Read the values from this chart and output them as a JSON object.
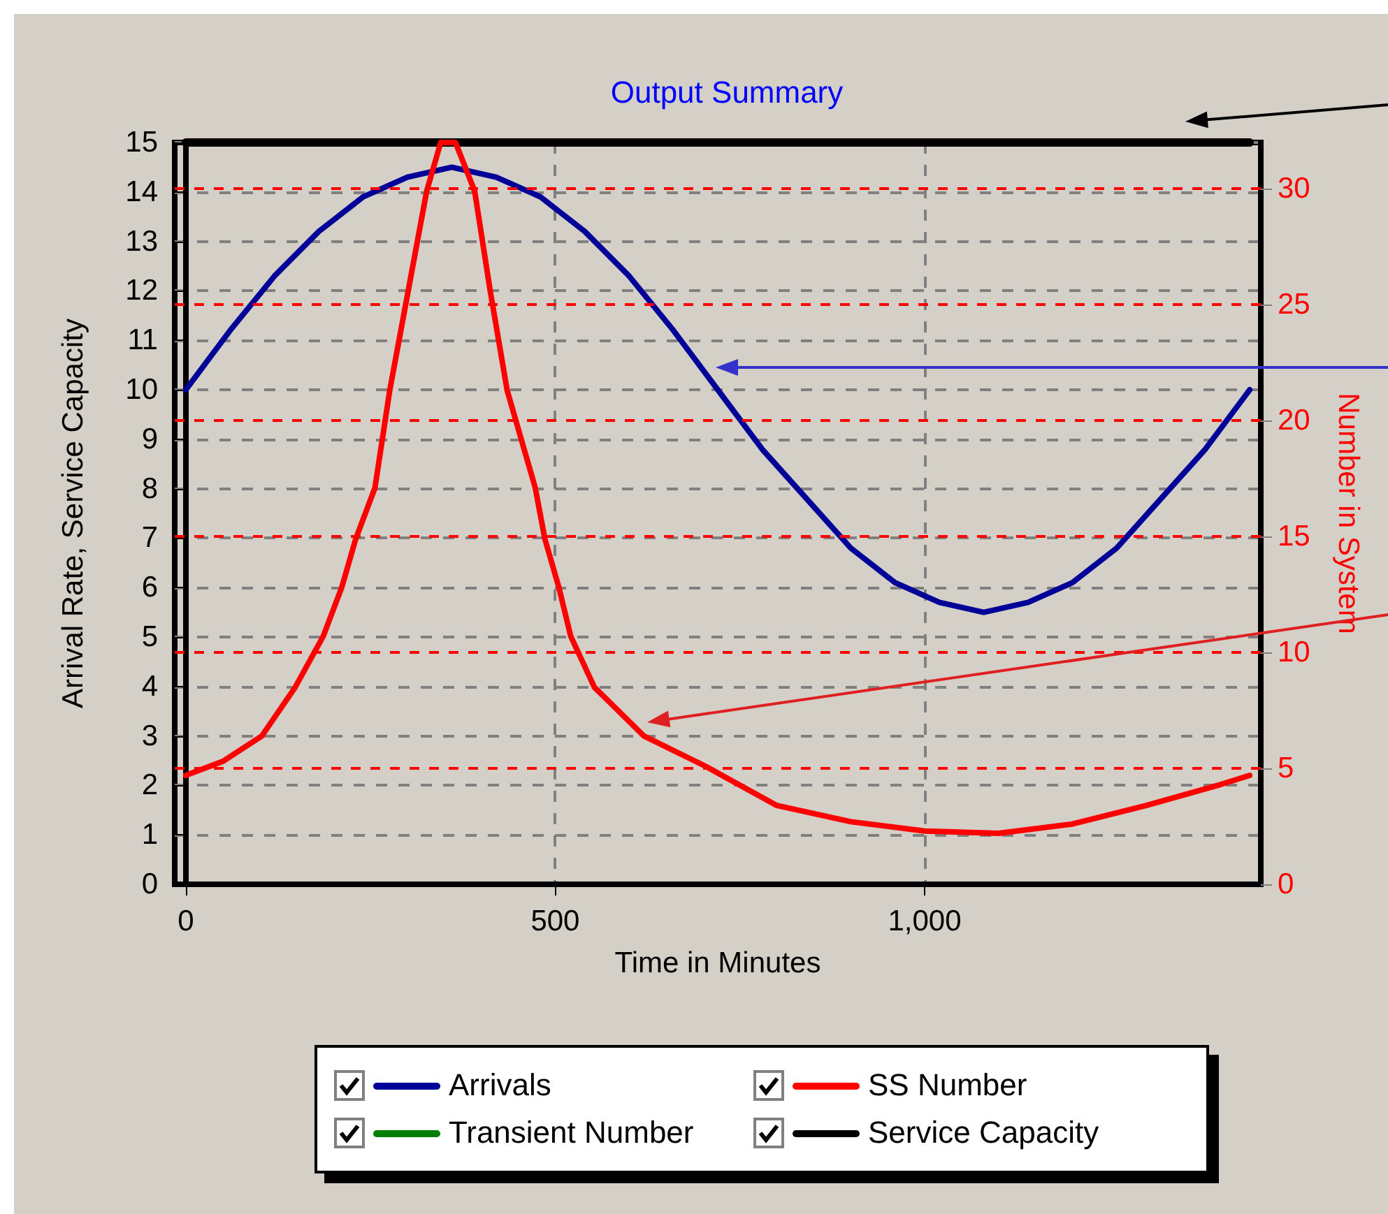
{
  "chart_data": {
    "type": "line",
    "title": "Output Summary",
    "xlabel": "Time in Minutes",
    "ylabel": "Arrival Rate, Service Capacity",
    "y2label": "Number in System",
    "xlim": [
      -15,
      1455
    ],
    "xticks": [
      0,
      500,
      {
        "value": 1000,
        "label": "1,000"
      }
    ],
    "ylim": [
      0,
      15
    ],
    "yticks": [
      0,
      1,
      2,
      3,
      4,
      5,
      6,
      7,
      8,
      9,
      10,
      11,
      12,
      13,
      14,
      15
    ],
    "y2lim": [
      0,
      32
    ],
    "y2ticks": [
      0,
      5,
      10,
      15,
      20,
      25,
      30
    ],
    "grid": true,
    "ref_lines": [
      {
        "axis": "y2",
        "value": 5,
        "color": "#ff0000",
        "line_style": "dashed"
      },
      {
        "axis": "y2",
        "value": 10,
        "color": "#ff0000",
        "line_style": "dashed"
      },
      {
        "axis": "y2",
        "value": 15,
        "color": "#ff0000",
        "line_style": "dashed"
      },
      {
        "axis": "y2",
        "value": 20,
        "color": "#ff0000",
        "line_style": "dashed"
      },
      {
        "axis": "y2",
        "value": 25,
        "color": "#ff0000",
        "line_style": "dashed"
      },
      {
        "axis": "y2",
        "value": 30,
        "color": "#ff0000",
        "line_style": "dashed"
      }
    ],
    "legend": "bottom",
    "marker": "none",
    "line_style": "solid",
    "series": [
      {
        "name": "Arrivals",
        "color": "#000099",
        "x": [
          0,
          60,
          120,
          180,
          240,
          300,
          360,
          420,
          480,
          540,
          600,
          660,
          720,
          780,
          840,
          900,
          960,
          1020,
          1080,
          1140,
          1200,
          1260,
          1320,
          1380,
          1440
        ],
        "values": [
          10,
          11.2,
          12.3,
          13.2,
          13.9,
          14.3,
          14.5,
          14.3,
          13.9,
          13.2,
          12.3,
          11.2,
          10,
          8.8,
          7.8,
          6.8,
          6.1,
          5.7,
          5.5,
          5.7,
          6.1,
          6.8,
          7.8,
          8.8,
          10
        ]
      },
      {
        "name": "Transient Number",
        "color": "#008000",
        "axis": "y2"
      },
      {
        "name": "SS Number",
        "color": "#ff0000",
        "axis": "y2",
        "x": [
          0,
          50,
          103,
          148,
          186,
          211,
          230,
          256,
          276,
          301,
          326,
          345,
          365,
          391,
          412,
          435,
          473,
          486,
          505,
          521,
          553,
          620,
          703,
          800,
          900,
          1000,
          1100,
          1200,
          1300,
          1400,
          1440
        ],
        "values": [
          4.7,
          5.3,
          6.4,
          8.5,
          10.7,
          12.8,
          14.9,
          17.1,
          21.3,
          25.6,
          29.9,
          32,
          32,
          29.9,
          25.6,
          21.3,
          17.1,
          14.9,
          12.8,
          10.7,
          8.5,
          6.4,
          5.1,
          3.4,
          2.7,
          2.3,
          2.2,
          2.6,
          3.4,
          4.3,
          4.7
        ]
      },
      {
        "name": "Service Capacity",
        "color": "#000000",
        "x": [
          0,
          1440
        ],
        "values": [
          15,
          15
        ]
      }
    ]
  }
}
